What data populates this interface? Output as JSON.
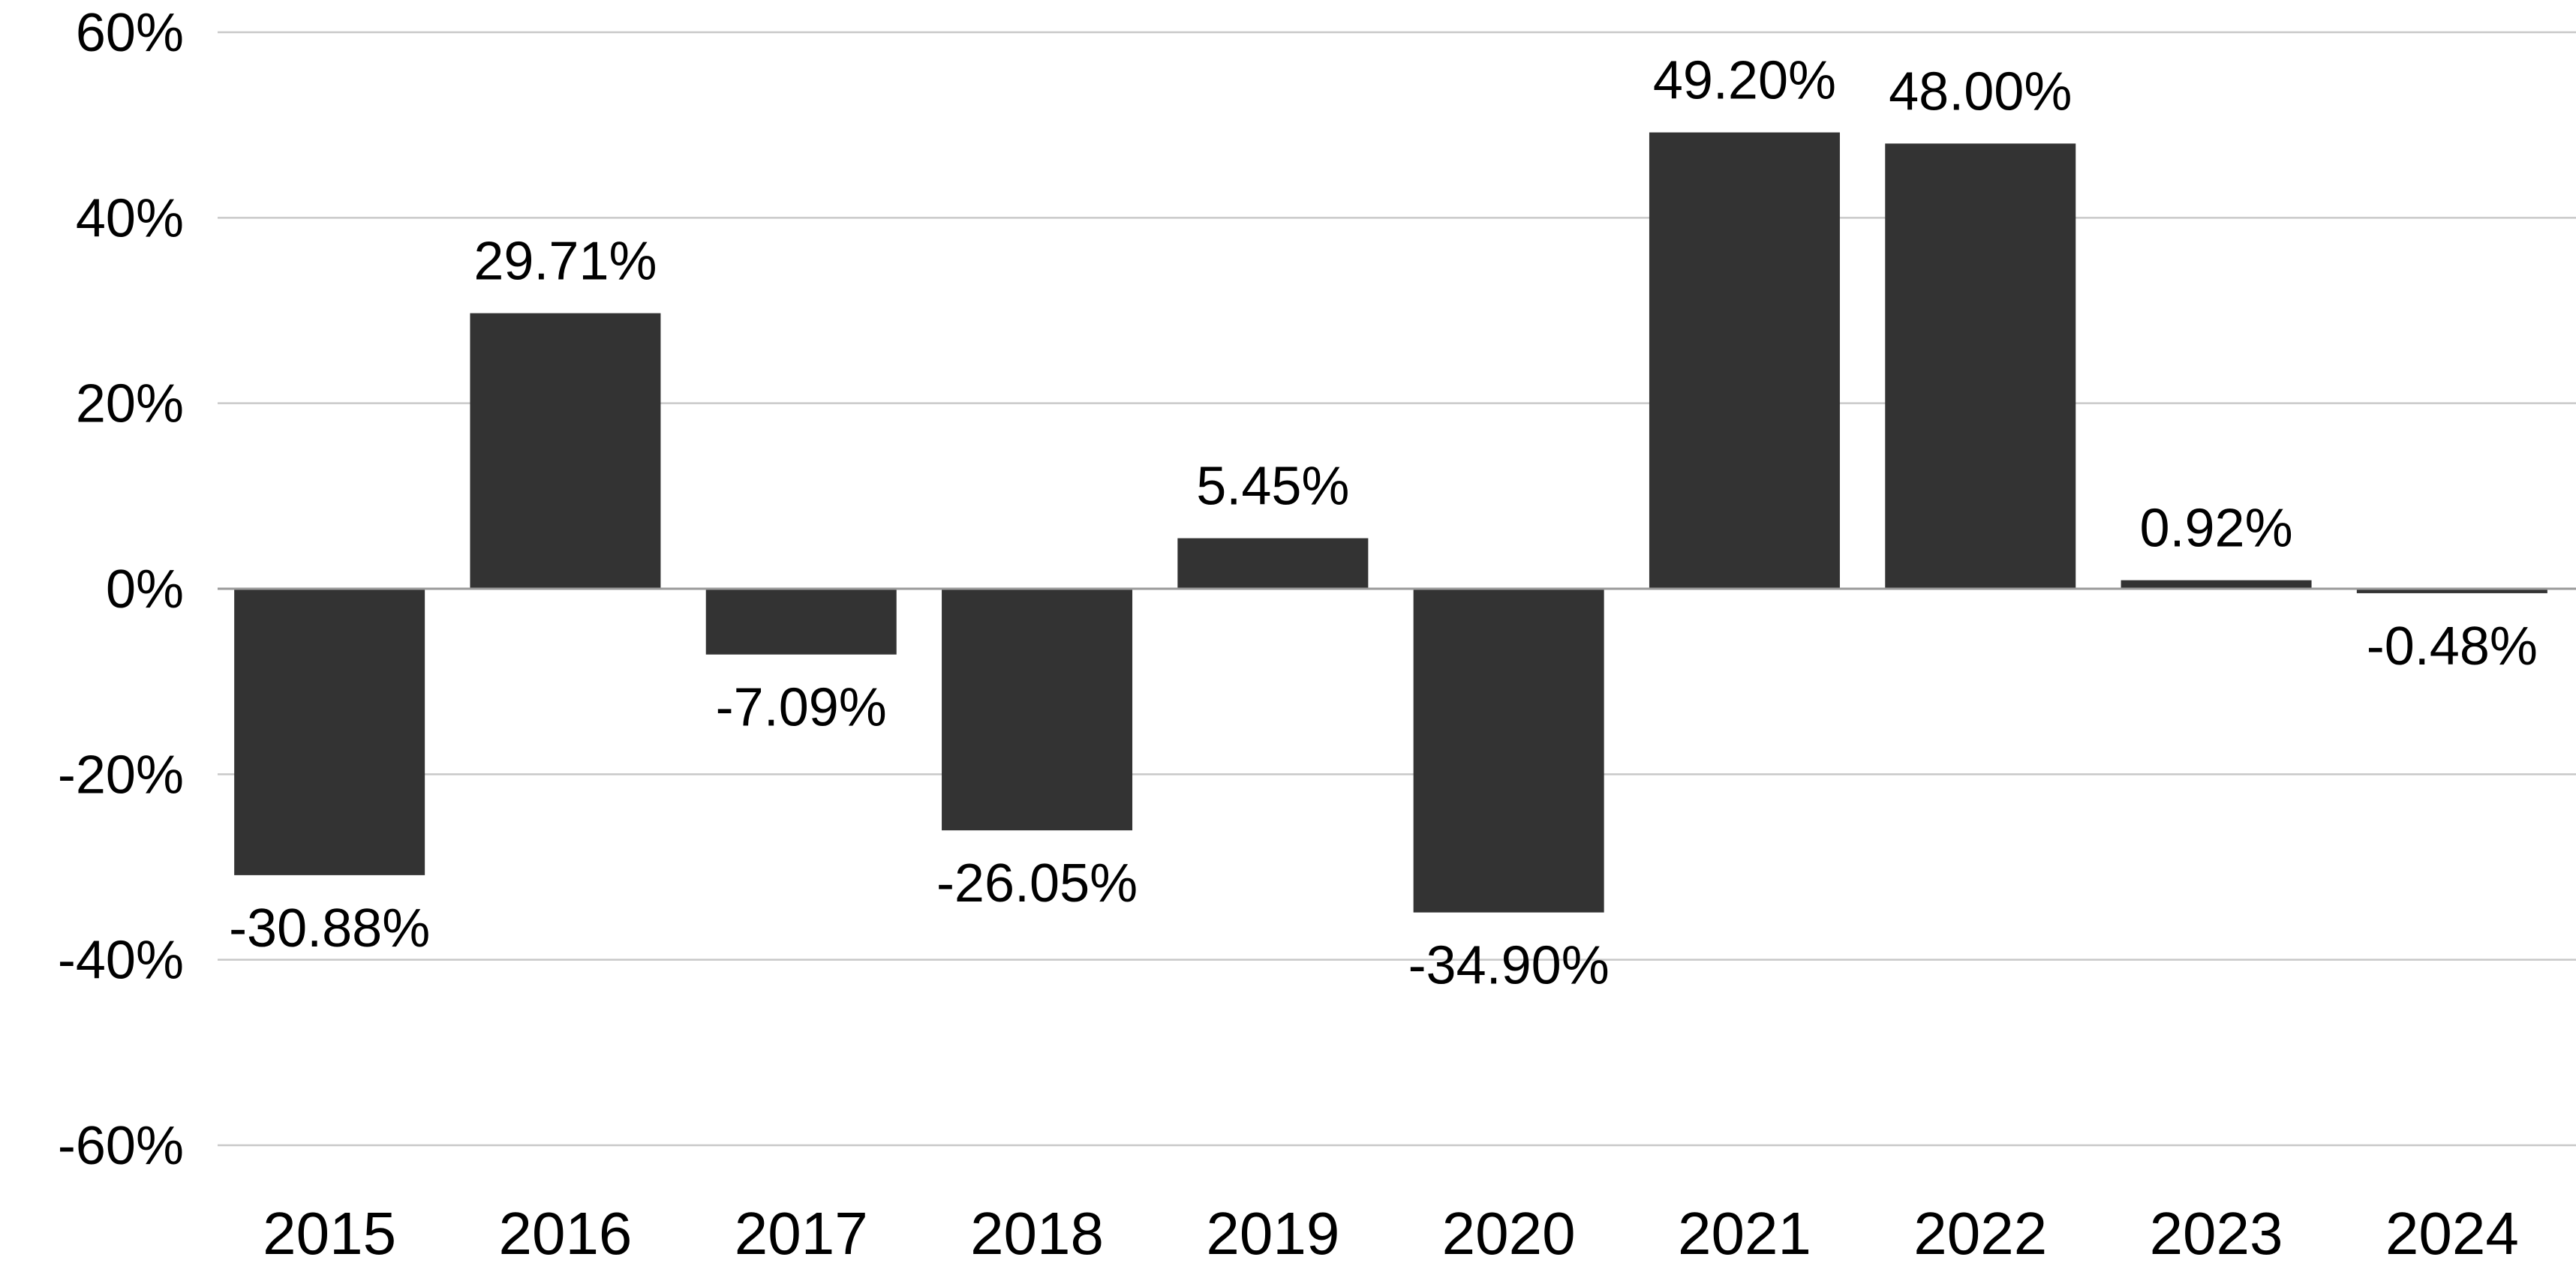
{
  "chart_data": {
    "type": "bar",
    "title": "",
    "xlabel": "",
    "ylabel": "",
    "categories": [
      "2015",
      "2016",
      "2017",
      "2018",
      "2019",
      "2020",
      "2021",
      "2022",
      "2023",
      "2024"
    ],
    "values": [
      -30.88,
      29.71,
      -7.09,
      -26.05,
      5.45,
      -34.9,
      49.2,
      48.0,
      0.92,
      -0.48
    ],
    "data_labels": [
      "-30.88%",
      "29.71%",
      "-7.09%",
      "-26.05%",
      "5.45%",
      "-34.90%",
      "49.20%",
      "48.00%",
      "0.92%",
      "-0.48%"
    ],
    "ylim": [
      -60,
      60
    ],
    "yticks": [
      60,
      40,
      20,
      0,
      -20,
      -40,
      -60
    ],
    "ytick_labels": [
      "60%",
      "40%",
      "20%",
      "0%",
      "-20%",
      "-40%",
      "-60%"
    ],
    "grid": true,
    "legend": "none",
    "colors": {
      "bar": "#333333",
      "grid": "#c8c8c8",
      "zero_line": "#9a9a9a",
      "text": "#000000"
    }
  }
}
